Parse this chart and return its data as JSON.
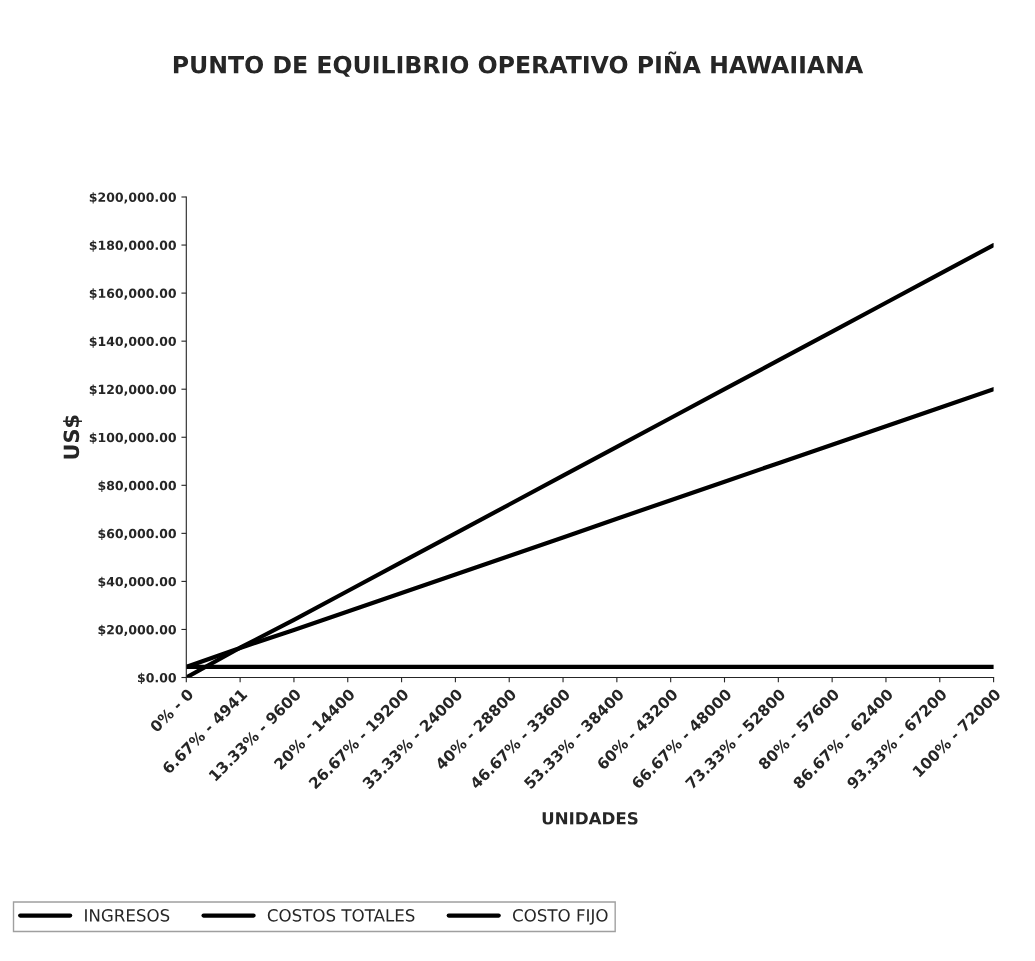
{
  "chart_data": {
    "type": "line",
    "title": "PUNTO DE EQUILIBRIO OPERATIVO PIÑA HAWAIIANA",
    "xlabel": "UNIDADES",
    "ylabel": "US$",
    "categories": [
      "0% - 0",
      "6.67% - 4941",
      "13.33% - 9600",
      "20% - 14400",
      "26.67% - 19200",
      "33.33% - 24000",
      "40% - 28800",
      "46.67% - 33600",
      "53.33% - 38400",
      "60% - 43200",
      "66.67% - 48000",
      "73.33% - 52800",
      "80% - 57600",
      "86.67% - 62400",
      "93.33% - 67200",
      "100% - 72000"
    ],
    "series": [
      {
        "name": "INGRESOS",
        "color": "#000000",
        "values": [
          0,
          12400,
          24000,
          36000,
          48000,
          60000,
          72000,
          84000,
          96000,
          108000,
          120000,
          132000,
          144000,
          156000,
          168000,
          180000
        ]
      },
      {
        "name": "COSTOS TOTALES",
        "color": "#000000",
        "values": [
          4400,
          12300,
          19800,
          27500,
          35200,
          42900,
          50600,
          58300,
          66100,
          73800,
          81500,
          89200,
          96900,
          104600,
          112300,
          120000
        ]
      },
      {
        "name": "COSTO FIJO",
        "color": "#000000",
        "values": [
          4400,
          4400,
          4400,
          4400,
          4400,
          4400,
          4400,
          4400,
          4400,
          4400,
          4400,
          4400,
          4400,
          4400,
          4400,
          4400
        ]
      }
    ],
    "ylim": [
      0,
      200000
    ],
    "yticks": [
      {
        "value": 0,
        "label": "$0.00"
      },
      {
        "value": 20000,
        "label": "$20,000.00"
      },
      {
        "value": 40000,
        "label": "$40,000.00"
      },
      {
        "value": 60000,
        "label": "$60,000.00"
      },
      {
        "value": 80000,
        "label": "$80,000.00"
      },
      {
        "value": 100000,
        "label": "$100,000.00"
      },
      {
        "value": 120000,
        "label": "$120,000.00"
      },
      {
        "value": 140000,
        "label": "$140,000.00"
      },
      {
        "value": 160000,
        "label": "$160,000.00"
      },
      {
        "value": 180000,
        "label": "$180,000.00"
      },
      {
        "value": 200000,
        "label": "$200,000.00"
      }
    ],
    "legend": "bottom",
    "marker": "none",
    "line_style": "solid",
    "grid": false
  }
}
